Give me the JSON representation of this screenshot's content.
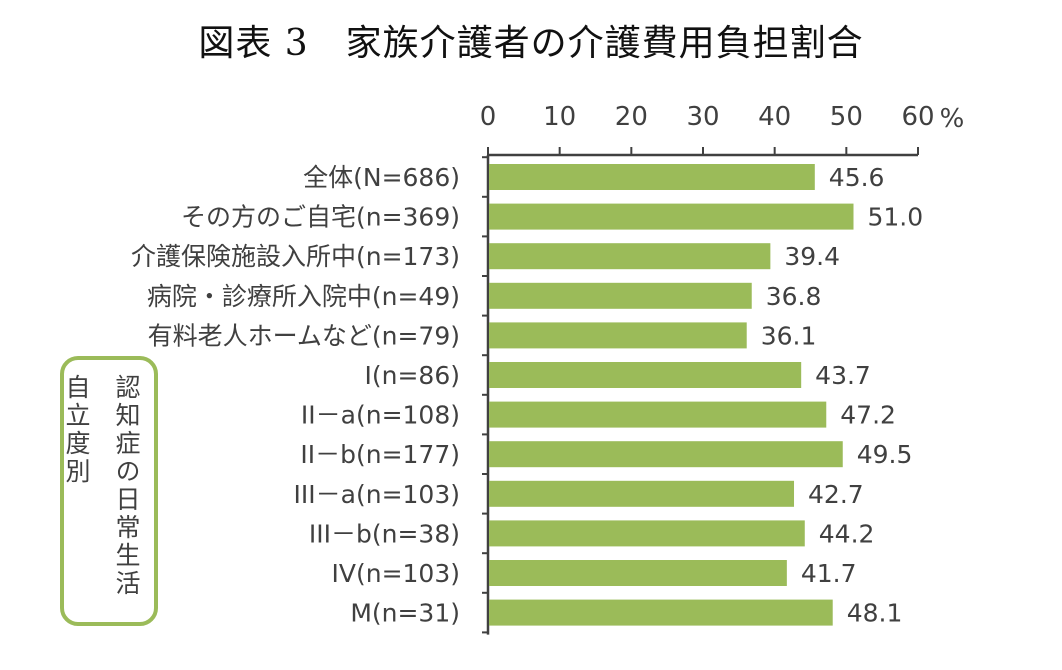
{
  "title": "図表 3　家族介護者の介護費用負担割合",
  "chart_data": {
    "type": "bar",
    "orientation": "horizontal",
    "axis_unit": "%",
    "xlim": [
      0,
      60
    ],
    "ticks": [
      0,
      10,
      20,
      30,
      40,
      50,
      60
    ],
    "categories": [
      "全体(N=686)",
      "その方のご自宅(n=369)",
      "介護保険施設入所中(n=173)",
      "病院・診療所入院中(n=49)",
      "有料老人ホームなど(n=79)",
      "I(n=86)",
      "II－a(n=108)",
      "II－b(n=177)",
      "III－a(n=103)",
      "III－b(n=38)",
      "IV(n=103)",
      "M(n=31)"
    ],
    "values": [
      45.6,
      51.0,
      39.4,
      36.8,
      36.1,
      43.7,
      47.2,
      49.5,
      42.7,
      44.2,
      41.7,
      48.1
    ],
    "value_labels": [
      "45.6",
      "51.0",
      "39.4",
      "36.8",
      "36.1",
      "43.7",
      "47.2",
      "49.5",
      "42.7",
      "44.2",
      "41.7",
      "48.1"
    ],
    "bar_color": "#9bbb59",
    "grid": false,
    "legend": "none",
    "group_label": {
      "text_a": "自立度別",
      "text_b": "認知症の日常生活",
      "color": "#9bbb59"
    }
  }
}
